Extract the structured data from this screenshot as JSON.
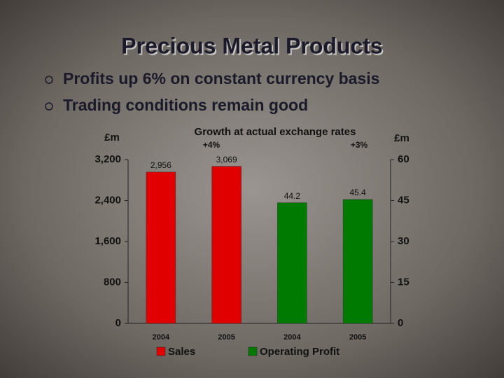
{
  "slide": {
    "title": "Precious Metal Products",
    "bullets": [
      "Profits up 6% on constant currency basis",
      "Trading conditions remain good"
    ]
  },
  "chart_data": {
    "type": "bar",
    "annotations": [
      "Growth at actual exchange rates",
      "+4%",
      "+3%"
    ],
    "y_label": "£m",
    "y2_label": "£m",
    "categories": [
      "2004",
      "2005",
      "2004",
      "2005"
    ],
    "series": [
      {
        "name": "Sales",
        "color": "#e00000",
        "values": [
          2956,
          3069,
          null,
          null
        ],
        "value_labels": [
          "2,956",
          "3,069",
          null,
          null
        ]
      },
      {
        "name": "Operating Profit",
        "color": "#007a00",
        "axis": "y2",
        "values": [
          null,
          null,
          44.2,
          45.4
        ]
      }
    ],
    "ylim": [
      0,
      3200
    ],
    "yticks": [
      0,
      800,
      {
        "value": 1600,
        "label": "1,600"
      },
      {
        "value": 2400,
        "label": "2,400"
      },
      {
        "value": 3200,
        "label": "3,200"
      }
    ],
    "y2lim": [
      0,
      60
    ],
    "y2ticks": [
      0,
      15,
      30,
      45,
      60
    ]
  }
}
